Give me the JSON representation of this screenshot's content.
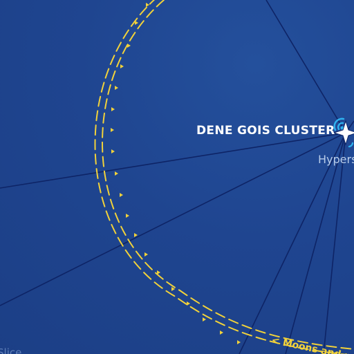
{
  "map": {
    "cluster": {
      "name": "DENE GOIS CLUSTER"
    },
    "hyperspace_label": "Hypers",
    "route_label": "< Moons and r",
    "corner_label": "Slice"
  },
  "colors": {
    "background": "#1f4590",
    "hyperspace_lane": "#0e2466",
    "orbit_path": "#f2d23a",
    "star": "#ffffff",
    "beacon": "#2fb3f0",
    "label_text": "#ffffff",
    "subtle_text": "#b8cdea"
  },
  "icons": {
    "cluster_marker": "four-point-star-icon",
    "beacon": "signal-beacon-icon",
    "direction": "triangle-arrow-icon"
  }
}
